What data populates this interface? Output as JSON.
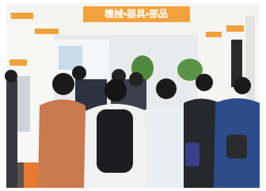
{
  "sign": {
    "text": "機械・器具・部品"
  }
}
